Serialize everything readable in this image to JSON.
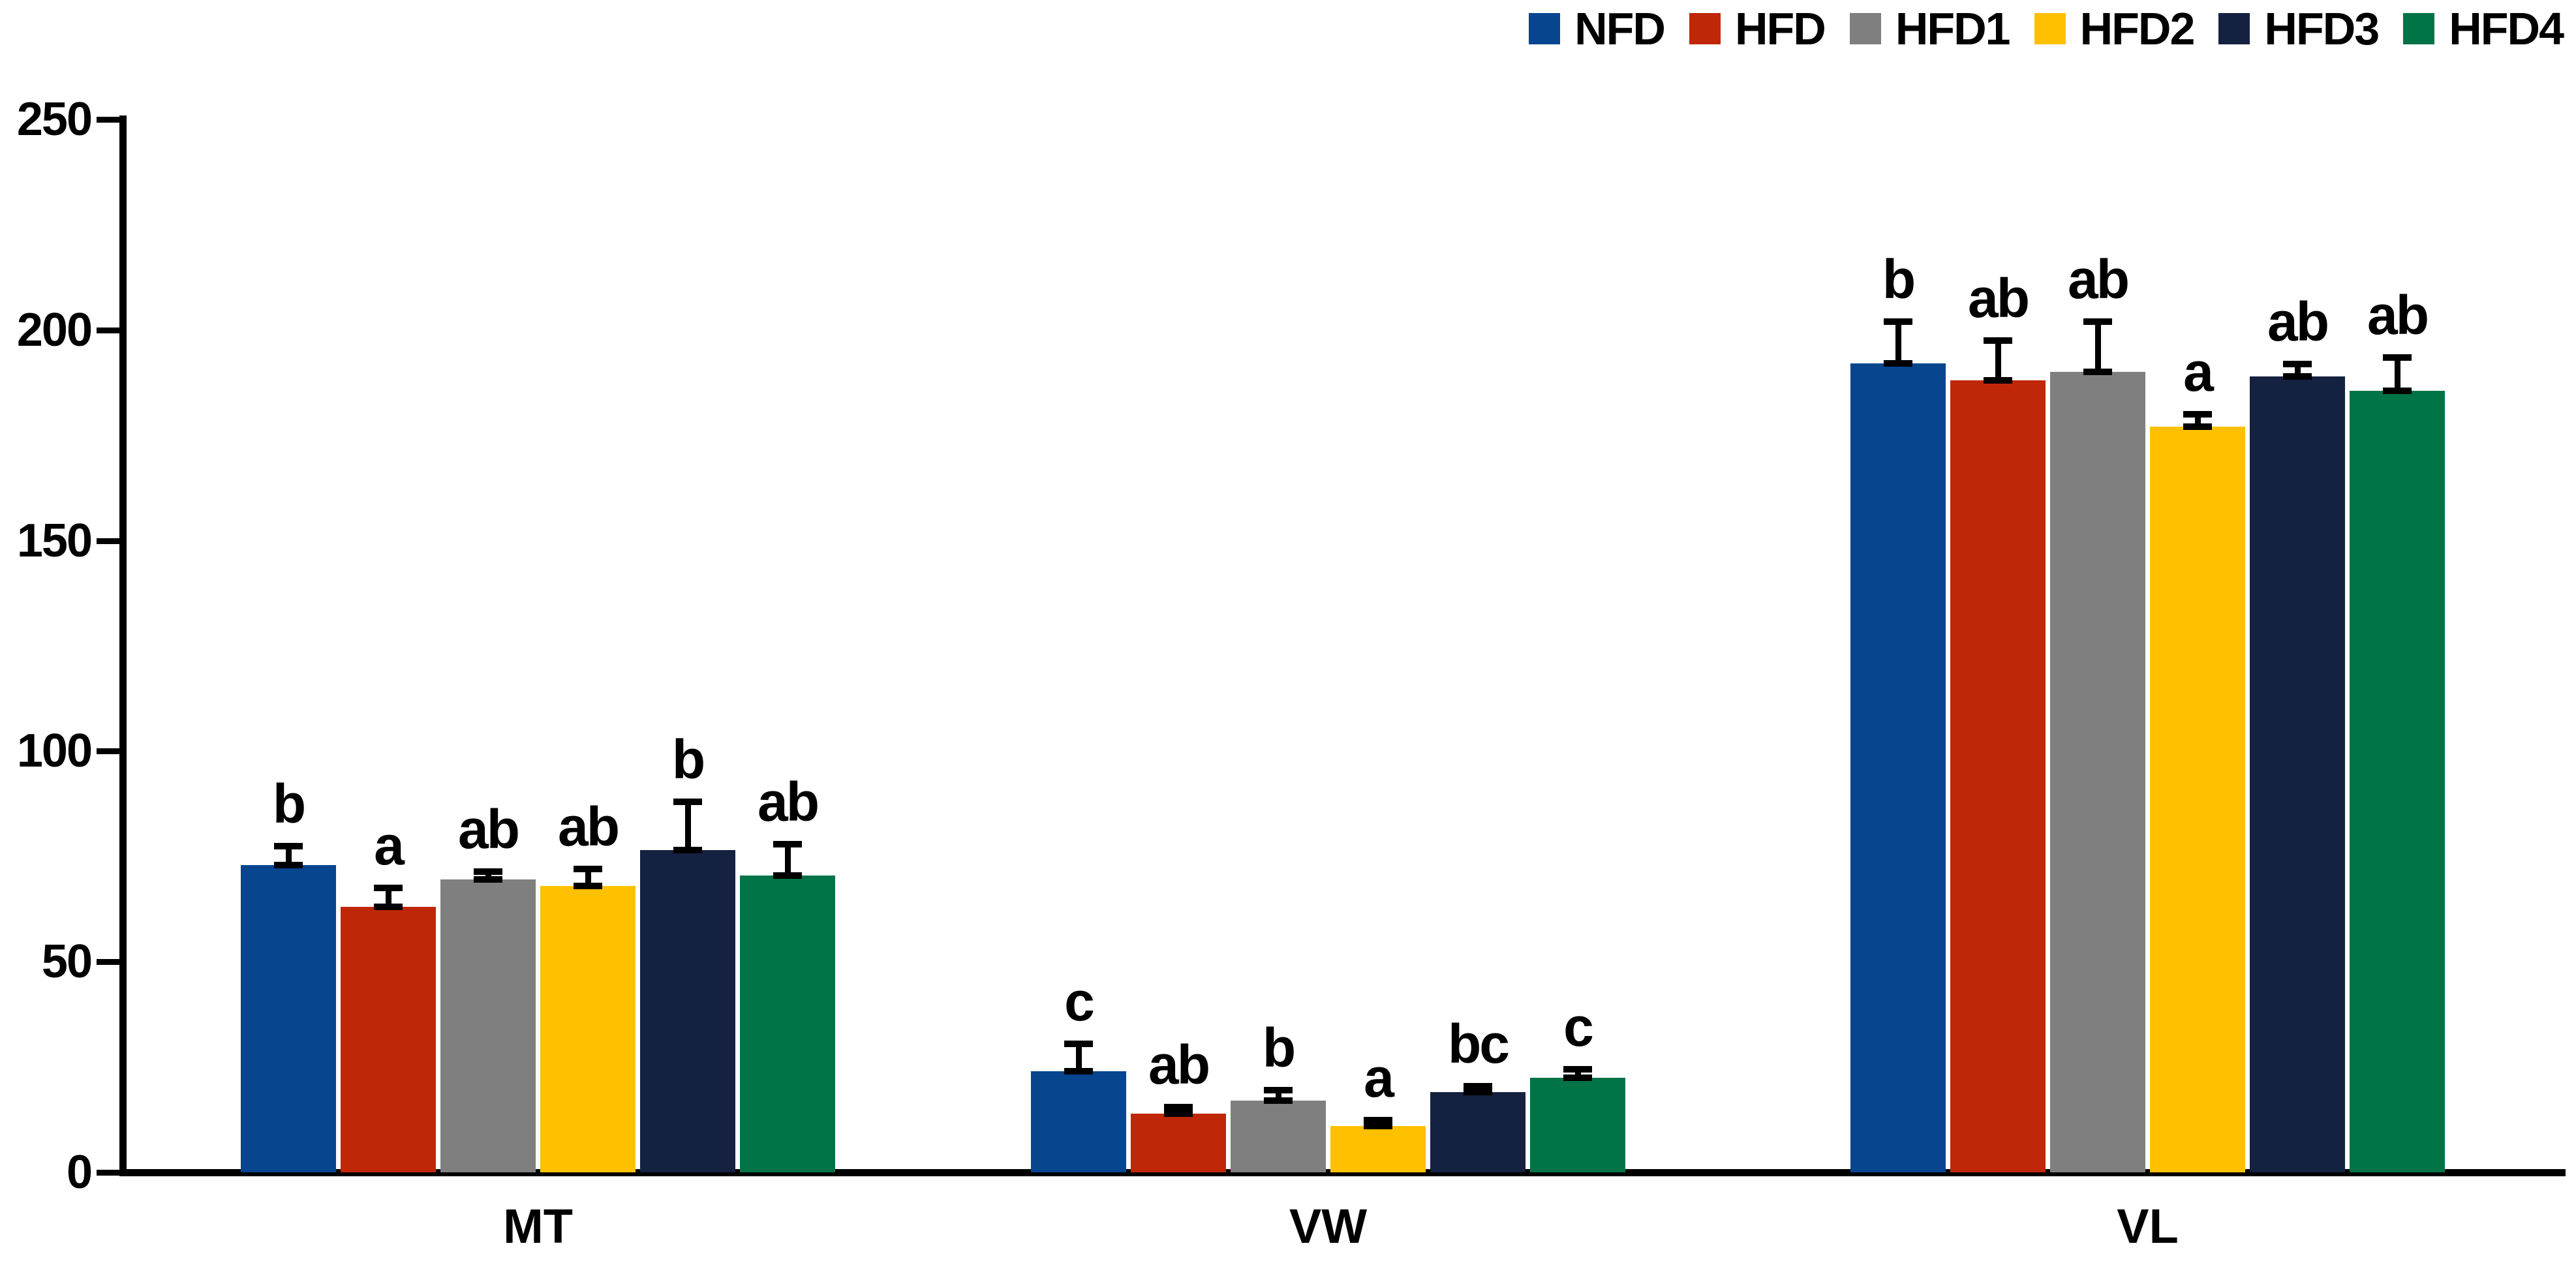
{
  "chart_data": {
    "type": "bar",
    "title": "",
    "xlabel": "",
    "ylabel": "",
    "categories": [
      "MT",
      "VW",
      "VL"
    ],
    "series": [
      {
        "name": "NFD",
        "color": "#07458F",
        "values": [
          73,
          24,
          192
        ],
        "errors": [
          4,
          6,
          9.5
        ],
        "letters": [
          "b",
          "c",
          "b"
        ]
      },
      {
        "name": "HFD",
        "color": "#C02708",
        "values": [
          63,
          14,
          188
        ],
        "errors": [
          4,
          1,
          9
        ],
        "letters": [
          "a",
          "ab",
          "ab"
        ]
      },
      {
        "name": "HFD1",
        "color": "#7F7F7F",
        "values": [
          69.5,
          17,
          190
        ],
        "errors": [
          1.5,
          2,
          11.5
        ],
        "letters": [
          "ab",
          "b",
          "ab"
        ]
      },
      {
        "name": "HFD2",
        "color": "#FFC000",
        "values": [
          68,
          11,
          177
        ],
        "errors": [
          3.5,
          1,
          2.5
        ],
        "letters": [
          "ab",
          "a",
          "a"
        ]
      },
      {
        "name": "HFD3",
        "color": "#152140",
        "values": [
          76.5,
          19,
          189
        ],
        "errors": [
          11,
          1,
          2.5
        ],
        "letters": [
          "b",
          "bc",
          "ab"
        ]
      },
      {
        "name": "HFD4",
        "color": "#007347",
        "values": [
          70.5,
          22.5,
          185.5
        ],
        "errors": [
          7,
          1.5,
          7.5
        ],
        "letters": [
          "ab",
          "c",
          "ab"
        ]
      }
    ],
    "ylim": [
      0,
      250
    ],
    "yticks": [
      0,
      50,
      100,
      150,
      200,
      250
    ],
    "ytick_labels": [
      "0",
      "50",
      "100",
      "150",
      "200",
      "250"
    ],
    "grid": false,
    "legend_position": "top-right",
    "error_bar_style": "i-beam-up",
    "axis_color": "#000000",
    "text_color": "#000000",
    "background_color": "#FFFFFF"
  }
}
